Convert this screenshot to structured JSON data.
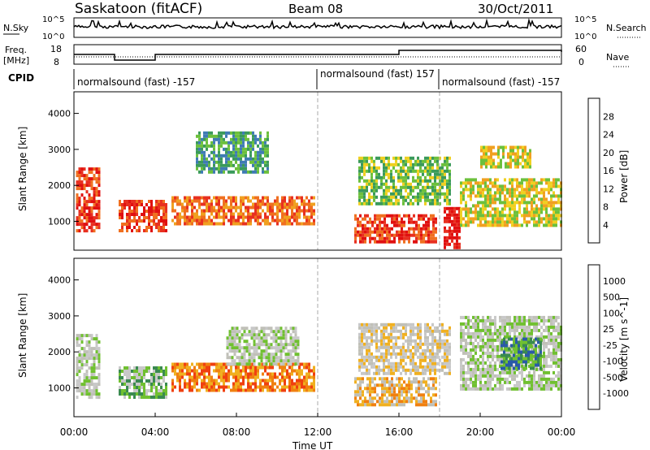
{
  "header": {
    "station": "Saskatoon (fitACF)",
    "beam": "Beam 08",
    "date": "30/Oct/2011"
  },
  "strip_labels": {
    "nsky": "N.Sky",
    "nsky_hi": "10^5",
    "nsky_lo": "10^0",
    "nsearch": "N.Search",
    "freq_line1": "Freq.",
    "freq_line2": "[MHz]",
    "freq_hi": "18",
    "freq_lo": "8",
    "nave_hi": "60",
    "nave_lo": "0",
    "nave": "Nave",
    "cpid": "CPID",
    "cpid_segments": [
      "normalsound (fast) -157",
      "normalsound (fast) 157",
      "normalsound (fast) -157"
    ]
  },
  "colors": {
    "power": [
      "#0018f0",
      "#2a3fa8",
      "#3f7bb4",
      "#3a9a5a",
      "#6cc03c",
      "#f0d020",
      "#f0a020",
      "#f07020",
      "#e83020",
      "#e01010"
    ],
    "velocity": [
      "#1030d0",
      "#2a5aa8",
      "#3a8a50",
      "#70c030",
      "#c8c8c8",
      "#c0c0b8",
      "#f0b020",
      "#f08010",
      "#f04010",
      "#e01010"
    ]
  },
  "chart_data": [
    {
      "type": "heatmap",
      "panel": "power",
      "ylabel": "Slant Range [km]",
      "yticks": [
        1000,
        2000,
        3000,
        4000
      ],
      "ylim": [
        200,
        4600
      ],
      "xlim_hours": [
        0,
        24
      ],
      "colorbar_label": "Power [dB]",
      "colorbar_ticks": [
        "4",
        "8",
        "12",
        "16",
        "20",
        "24",
        "28"
      ],
      "regions": [
        {
          "t0": 0.1,
          "t1": 1.3,
          "r0": 700,
          "r1": 2500,
          "level": 8
        },
        {
          "t0": 2.2,
          "t1": 4.5,
          "r0": 700,
          "r1": 1600,
          "level": 8
        },
        {
          "t0": 4.8,
          "t1": 11.8,
          "r0": 900,
          "r1": 1700,
          "level": 7
        },
        {
          "t0": 6.0,
          "t1": 9.5,
          "r0": 2400,
          "r1": 3500,
          "level": 3
        },
        {
          "t0": 13.8,
          "t1": 17.8,
          "r0": 400,
          "r1": 1200,
          "level": 8
        },
        {
          "t0": 14.0,
          "t1": 18.5,
          "r0": 1500,
          "r1": 2800,
          "level": 4
        },
        {
          "t0": 18.2,
          "t1": 19.0,
          "r0": 300,
          "r1": 1400,
          "level": 9
        },
        {
          "t0": 19.0,
          "t1": 24.0,
          "r0": 900,
          "r1": 2200,
          "level": 5
        },
        {
          "t0": 20.0,
          "t1": 22.5,
          "r0": 2500,
          "r1": 3100,
          "level": 5
        }
      ]
    },
    {
      "type": "heatmap",
      "panel": "velocity",
      "ylabel": "Slant Range [km]",
      "yticks": [
        1000,
        2000,
        3000,
        4000
      ],
      "ylim": [
        200,
        4600
      ],
      "xlim_hours": [
        0,
        24
      ],
      "xticks": [
        "00:00",
        "04:00",
        "08:00",
        "12:00",
        "16:00",
        "20:00",
        "00:00"
      ],
      "xlabel": "Time UT",
      "colorbar_label": "Velocity [m s^-1]",
      "colorbar_ticks": [
        "1000",
        "500",
        "100",
        "25",
        "-25",
        "-100",
        "-500",
        "-1000"
      ],
      "regions": [
        {
          "t0": 0.1,
          "t1": 1.3,
          "r0": 700,
          "r1": 2500,
          "level": 4
        },
        {
          "t0": 2.2,
          "t1": 4.5,
          "r0": 700,
          "r1": 1600,
          "level": 3
        },
        {
          "t0": 4.8,
          "t1": 11.8,
          "r0": 900,
          "r1": 1700,
          "level": 7
        },
        {
          "t0": 7.5,
          "t1": 11.0,
          "r0": 1700,
          "r1": 2700,
          "level": 4
        },
        {
          "t0": 13.8,
          "t1": 17.8,
          "r0": 500,
          "r1": 1300,
          "level": 6
        },
        {
          "t0": 14.0,
          "t1": 18.5,
          "r0": 1400,
          "r1": 2800,
          "level": 5
        },
        {
          "t0": 19.0,
          "t1": 24.0,
          "r0": 1000,
          "r1": 3000,
          "level": 4
        },
        {
          "t0": 21.0,
          "t1": 23.0,
          "r0": 1500,
          "r1": 2400,
          "level": 2
        }
      ]
    }
  ]
}
